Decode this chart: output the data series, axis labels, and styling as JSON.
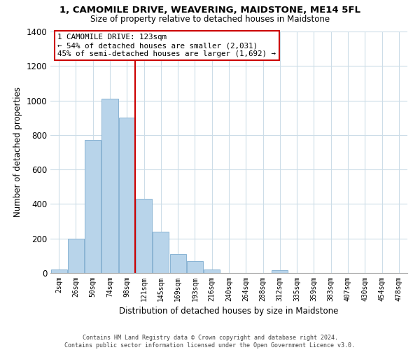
{
  "title": "1, CAMOMILE DRIVE, WEAVERING, MAIDSTONE, ME14 5FL",
  "subtitle": "Size of property relative to detached houses in Maidstone",
  "xlabel": "Distribution of detached houses by size in Maidstone",
  "ylabel": "Number of detached properties",
  "bar_color": "#b8d4ea",
  "bar_edge_color": "#8ab4d4",
  "bin_labels": [
    "2sqm",
    "26sqm",
    "50sqm",
    "74sqm",
    "98sqm",
    "121sqm",
    "145sqm",
    "169sqm",
    "193sqm",
    "216sqm",
    "240sqm",
    "264sqm",
    "288sqm",
    "312sqm",
    "335sqm",
    "359sqm",
    "383sqm",
    "407sqm",
    "430sqm",
    "454sqm",
    "478sqm"
  ],
  "bar_heights": [
    20,
    200,
    770,
    1010,
    900,
    430,
    240,
    110,
    70,
    20,
    0,
    0,
    0,
    15,
    0,
    0,
    0,
    0,
    0,
    0,
    0
  ],
  "vline_x_index": 5,
  "vline_color": "#cc0000",
  "annotation_line1": "1 CAMOMILE DRIVE: 123sqm",
  "annotation_line2": "← 54% of detached houses are smaller (2,031)",
  "annotation_line3": "45% of semi-detached houses are larger (1,692) →",
  "annotation_box_color": "#ffffff",
  "annotation_box_edge_color": "#cc0000",
  "ylim": [
    0,
    1400
  ],
  "yticks": [
    0,
    200,
    400,
    600,
    800,
    1000,
    1200,
    1400
  ],
  "footer_line1": "Contains HM Land Registry data © Crown copyright and database right 2024.",
  "footer_line2": "Contains public sector information licensed under the Open Government Licence v3.0.",
  "background_color": "#ffffff",
  "grid_color": "#ccdde8"
}
